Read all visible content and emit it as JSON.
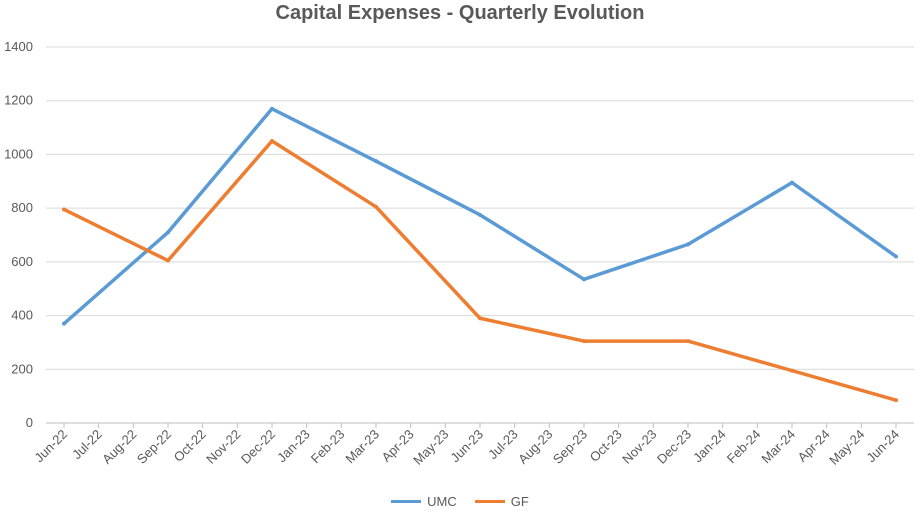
{
  "chart_data": {
    "type": "line",
    "title": "Capital Expenses - Quarterly Evolution",
    "xlabel": "",
    "ylabel": "",
    "ylim": [
      0,
      1400
    ],
    "yticks": [
      "0",
      "200",
      "400",
      "600",
      "800",
      "1000",
      "1200",
      "1400"
    ],
    "grid": true,
    "legend_position": "bottom",
    "categories": [
      "Jun-22",
      "Jul-22",
      "Aug-22",
      "Sep-22",
      "Oct-22",
      "Nov-22",
      "Dec-22",
      "Jan-23",
      "Feb-23",
      "Mar-23",
      "Apr-23",
      "May-23",
      "Jun-23",
      "Jul-23",
      "Aug-23",
      "Sep-23",
      "Oct-23",
      "Nov-23",
      "Dec-23",
      "Jan-24",
      "Feb-24",
      "Mar-24",
      "Apr-24",
      "May-24",
      "Jun-24"
    ],
    "series": [
      {
        "name": "UMC",
        "color": "#5B9BD5",
        "points": [
          {
            "x": "Jun-22",
            "y": 370
          },
          {
            "x": "Sep-22",
            "y": 710
          },
          {
            "x": "Dec-22",
            "y": 1170
          },
          {
            "x": "Mar-23",
            "y": 975
          },
          {
            "x": "Jun-23",
            "y": 775
          },
          {
            "x": "Sep-23",
            "y": 535
          },
          {
            "x": "Dec-23",
            "y": 665
          },
          {
            "x": "Mar-24",
            "y": 895
          },
          {
            "x": "Jun-24",
            "y": 620
          }
        ]
      },
      {
        "name": "GF",
        "color": "#ED7D31",
        "points": [
          {
            "x": "Jun-22",
            "y": 795
          },
          {
            "x": "Sep-22",
            "y": 605
          },
          {
            "x": "Dec-22",
            "y": 1050
          },
          {
            "x": "Mar-23",
            "y": 805
          },
          {
            "x": "Jun-23",
            "y": 390
          },
          {
            "x": "Sep-23",
            "y": 305
          },
          {
            "x": "Dec-23",
            "y": 305
          },
          {
            "x": "Mar-24",
            "y": 195
          },
          {
            "x": "Jun-24",
            "y": 85
          }
        ]
      }
    ]
  }
}
